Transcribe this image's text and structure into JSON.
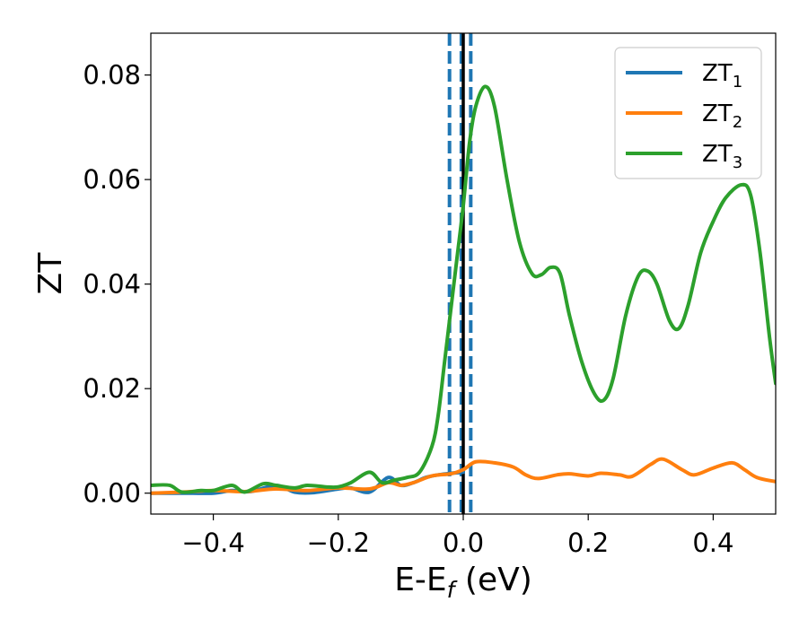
{
  "chart_data": {
    "type": "line",
    "xlabel": "E-E",
    "xlabel_subscript": "f",
    "xlabel_unit": " (eV)",
    "ylabel": "ZT",
    "xlim": [
      -0.5,
      0.5
    ],
    "ylim": [
      -0.004,
      0.088
    ],
    "x_ticks": [
      -0.4,
      -0.2,
      0.0,
      0.2,
      0.4
    ],
    "x_tick_labels": [
      "−0.4",
      "−0.2",
      "0.0",
      "0.2",
      "0.4"
    ],
    "y_ticks": [
      0.0,
      0.02,
      0.04,
      0.06,
      0.08
    ],
    "y_tick_labels": [
      "0.00",
      "0.02",
      "0.04",
      "0.06",
      "0.08"
    ],
    "grid": false,
    "legend_position": "top-right",
    "series": [
      {
        "name": "ZT",
        "subscript": "1",
        "color": "#1f77b4",
        "x": [
          -0.5,
          -0.45,
          -0.4,
          -0.37,
          -0.34,
          -0.3,
          -0.27,
          -0.24,
          -0.2,
          -0.18,
          -0.15,
          -0.12,
          -0.1,
          -0.08,
          -0.06,
          -0.04,
          -0.02,
          0.0
        ],
        "y": [
          0.0,
          0.0,
          0.0,
          0.0005,
          0.0003,
          0.0015,
          0.0002,
          0.0001,
          0.0008,
          0.001,
          0.0002,
          0.003,
          0.0015,
          0.002,
          0.003,
          0.0035,
          0.0038,
          0.004
        ]
      },
      {
        "name": "ZT",
        "subscript": "2",
        "color": "#ff7f0e",
        "x": [
          -0.5,
          -0.45,
          -0.4,
          -0.35,
          -0.3,
          -0.25,
          -0.2,
          -0.15,
          -0.12,
          -0.1,
          -0.08,
          -0.05,
          -0.02,
          0.0,
          0.02,
          0.05,
          0.08,
          0.1,
          0.12,
          0.15,
          0.17,
          0.2,
          0.22,
          0.25,
          0.27,
          0.3,
          0.32,
          0.35,
          0.37,
          0.4,
          0.43,
          0.45,
          0.47,
          0.5
        ],
        "y": [
          0.0,
          0.0002,
          0.0005,
          0.0003,
          0.0008,
          0.0005,
          0.001,
          0.0008,
          0.002,
          0.0015,
          0.002,
          0.0033,
          0.0037,
          0.0045,
          0.006,
          0.0058,
          0.005,
          0.0035,
          0.0028,
          0.0035,
          0.0037,
          0.0033,
          0.0038,
          0.0035,
          0.0032,
          0.0055,
          0.0065,
          0.0045,
          0.0035,
          0.0048,
          0.0058,
          0.0045,
          0.003,
          0.0022
        ]
      },
      {
        "name": "ZT",
        "subscript": "3",
        "color": "#2ca02c",
        "x": [
          -0.5,
          -0.47,
          -0.45,
          -0.42,
          -0.4,
          -0.37,
          -0.35,
          -0.32,
          -0.3,
          -0.27,
          -0.25,
          -0.22,
          -0.2,
          -0.18,
          -0.15,
          -0.13,
          -0.11,
          -0.09,
          -0.07,
          -0.05,
          -0.04,
          -0.03,
          -0.02,
          -0.01,
          0.0,
          0.01,
          0.02,
          0.035,
          0.05,
          0.07,
          0.09,
          0.11,
          0.125,
          0.14,
          0.155,
          0.17,
          0.19,
          0.21,
          0.225,
          0.24,
          0.26,
          0.28,
          0.295,
          0.31,
          0.33,
          0.345,
          0.36,
          0.38,
          0.4,
          0.42,
          0.445,
          0.46,
          0.475,
          0.49,
          0.5
        ],
        "y": [
          0.0015,
          0.0015,
          0.0002,
          0.0005,
          0.0005,
          0.0015,
          0.0002,
          0.0018,
          0.0015,
          0.001,
          0.0015,
          0.0012,
          0.0012,
          0.002,
          0.004,
          0.002,
          0.0025,
          0.003,
          0.004,
          0.009,
          0.015,
          0.025,
          0.035,
          0.045,
          0.055,
          0.067,
          0.074,
          0.0778,
          0.074,
          0.06,
          0.048,
          0.042,
          0.0418,
          0.0432,
          0.042,
          0.034,
          0.025,
          0.019,
          0.0178,
          0.022,
          0.034,
          0.0415,
          0.0425,
          0.04,
          0.033,
          0.0315,
          0.036,
          0.046,
          0.052,
          0.0565,
          0.059,
          0.057,
          0.046,
          0.03,
          0.021
        ]
      }
    ],
    "vertical_lines": [
      {
        "x": -0.022,
        "style": "dashed",
        "color": "#1f77b4"
      },
      {
        "x": -0.003,
        "style": "dashed",
        "color": "#1f77b4"
      },
      {
        "x": 0.012,
        "style": "dashed",
        "color": "#1f77b4"
      },
      {
        "x": 0.0,
        "style": "solid",
        "color": "#000000"
      }
    ]
  }
}
